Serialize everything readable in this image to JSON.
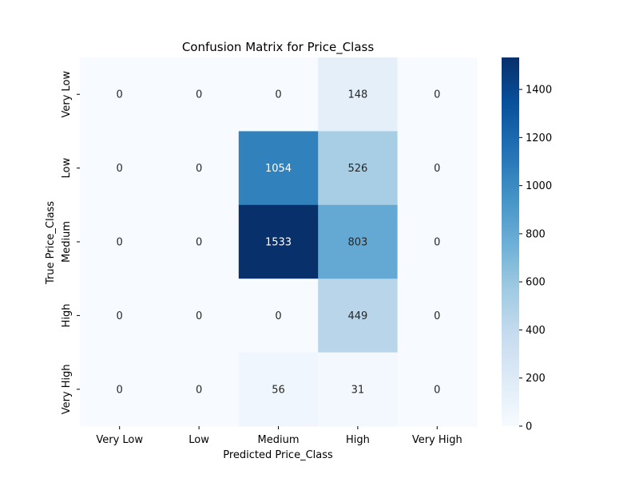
{
  "chart_data": {
    "type": "heatmap",
    "title": "Confusion Matrix for Price_Class",
    "xlabel": "Predicted Price_Class",
    "ylabel": "True Price_Class",
    "x_categories": [
      "Very Low",
      "Low",
      "Medium",
      "High",
      "Very High"
    ],
    "y_categories": [
      "Very Low",
      "Low",
      "Medium",
      "High",
      "Very High"
    ],
    "values": [
      [
        0,
        0,
        0,
        148,
        0
      ],
      [
        0,
        0,
        1054,
        526,
        0
      ],
      [
        0,
        0,
        1533,
        803,
        0
      ],
      [
        0,
        0,
        0,
        449,
        0
      ],
      [
        0,
        0,
        56,
        31,
        0
      ]
    ],
    "colormap": "Blues",
    "colorbar": {
      "min": 0,
      "max": 1533,
      "ticks": [
        0,
        200,
        400,
        600,
        800,
        1000,
        1200,
        1400
      ]
    }
  }
}
